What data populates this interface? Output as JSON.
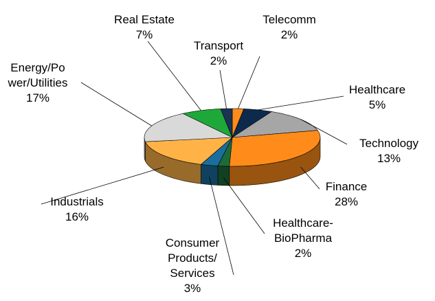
{
  "chart_data": {
    "type": "pie3d",
    "categories": [
      [
        "Telecomm"
      ],
      [
        "Healthcare"
      ],
      [
        "Technology"
      ],
      [
        "Finance"
      ],
      [
        "Healthcare-",
        "BioPharma"
      ],
      [
        "Consumer",
        "Products/",
        "Services"
      ],
      [
        "Industrials"
      ],
      [
        "Energy/Po",
        "wer/Utilities"
      ],
      [
        "Real Estate"
      ],
      [
        "Transport"
      ]
    ],
    "values": [
      2,
      5,
      13,
      28,
      2,
      3,
      16,
      17,
      7,
      2
    ],
    "value_labels": [
      "2%",
      "5%",
      "13%",
      "28%",
      "2%",
      "3%",
      "16%",
      "17%",
      "7%",
      "2%"
    ],
    "colors": [
      "#ff8c1a",
      "#0d2a4d",
      "#a6a6a6",
      "#ff8c1a",
      "#1e6b3a",
      "#1a6e9e",
      "#ffb347",
      "#d9d9d9",
      "#1fa83a",
      "#1a3355"
    ]
  }
}
